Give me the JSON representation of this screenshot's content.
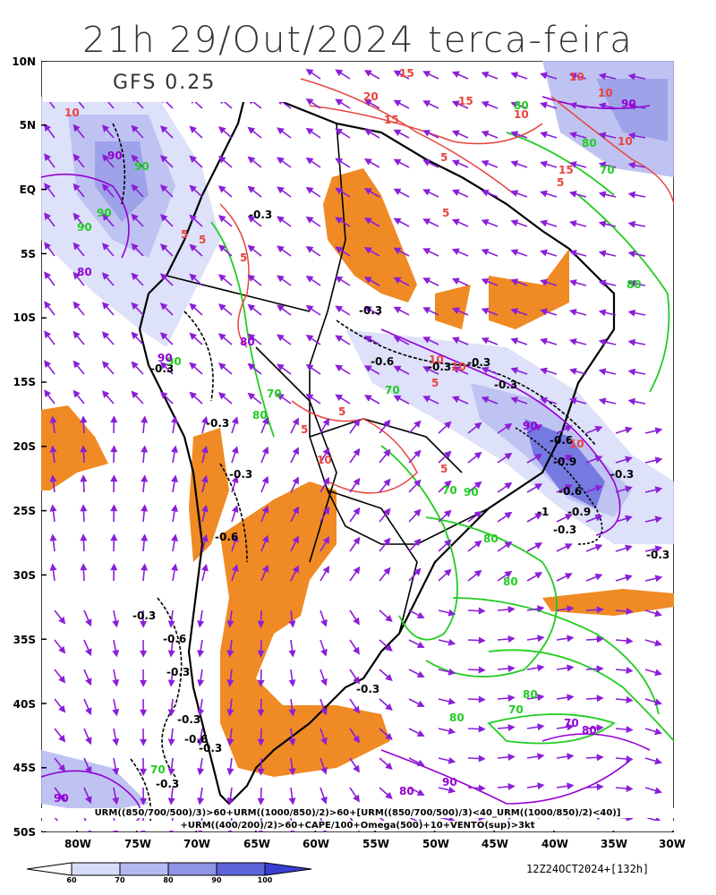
{
  "title": "21h 29/Out/2024 terca-feira",
  "model_label": "GFS 0.25",
  "lat_labels": [
    "10N",
    "5N",
    "EQ",
    "5S",
    "10S",
    "15S",
    "20S",
    "25S",
    "30S",
    "35S",
    "40S",
    "45S",
    "50S"
  ],
  "lon_labels": [
    "80W",
    "75W",
    "70W",
    "65W",
    "60W",
    "55W",
    "50W",
    "45W",
    "40W",
    "35W",
    "30W"
  ],
  "formula_line1": "URM((850/700/500)/3)>60+URM((1000/850)/2)>60+[URM((850/700/500)/3)<40_URM((1000/850)/2)<40)]",
  "formula_line2": "+URM((400/200)/2)>60+CAPE/100+Omega(500)+10+VENTO(sup)>3kt",
  "colorbar_labels": [
    "60",
    "70",
    "80",
    "90",
    "100"
  ],
  "colorbar_colors": [
    "#d8dcf8",
    "#b4b9f0",
    "#8e94e6",
    "#5e63dc",
    "#3a3fd4"
  ],
  "run_stamp": "12Z24OCT2024+[132h]",
  "contour_labels": {
    "omega": [
      "-0.3",
      "-0.3",
      "-0.6",
      "-0.3",
      "-0.3",
      "-0.3",
      "-0.3",
      "-0.3",
      "-0.6",
      "-0.3",
      "-0.9",
      "-0.6",
      "-0.3",
      "-1",
      "-0.9",
      "-0.3",
      "-0.3",
      "-0.3",
      "-0.6",
      "-0.3",
      "-0.6",
      "-0.3",
      "-0.3",
      "-0.6",
      "-0.3",
      "-0.3"
    ],
    "cape": [
      "15",
      "20",
      "15",
      "15",
      "10",
      "10",
      "5",
      "5",
      "10",
      "15",
      "5",
      "5",
      "5",
      "10",
      "10",
      "5",
      "5",
      "10",
      "10",
      "10",
      "5",
      "5",
      "10",
      "5"
    ],
    "rh_green": [
      "80",
      "90",
      "90",
      "90",
      "70",
      "80",
      "80",
      "90",
      "70",
      "70",
      "80",
      "90",
      "80",
      "80",
      "70",
      "70",
      "80",
      "80",
      "70"
    ],
    "rh_purple": [
      "90",
      "90",
      "80",
      "90",
      "90",
      "80",
      "70",
      "80",
      "90",
      "80",
      "90"
    ]
  },
  "colors": {
    "omega_line": "#000000",
    "cape_line": "#e8433c",
    "rh_low_line": "#22cc22",
    "rh_high_line": "#9400d3",
    "wind_vector": "#8b1fd8",
    "dry_fill": "#f08a24",
    "coast_line": "#000000"
  }
}
